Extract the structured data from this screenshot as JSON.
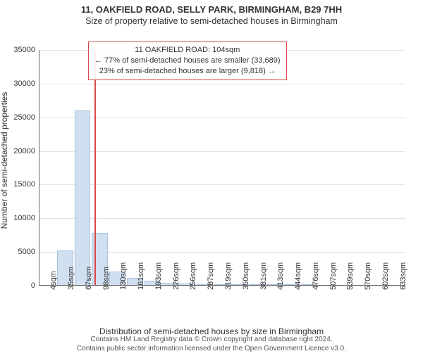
{
  "header": {
    "main_title": "11, OAKFIELD ROAD, SELLY PARK, BIRMINGHAM, B29 7HH",
    "sub_title": "Size of property relative to semi-detached houses in Birmingham"
  },
  "chart": {
    "type": "histogram",
    "ylabel": "Number of semi-detached properties",
    "xlabel": "Distribution of semi-detached houses by size in Birmingham",
    "ylim": [
      0,
      35000
    ],
    "ytick_step": 5000,
    "ytick_labels": [
      "0",
      "5000",
      "10000",
      "15000",
      "20000",
      "25000",
      "30000",
      "35000"
    ],
    "xtick_labels": [
      "4sqm",
      "35sqm",
      "67sqm",
      "98sqm",
      "130sqm",
      "161sqm",
      "193sqm",
      "226sqm",
      "256sqm",
      "287sqm",
      "319sqm",
      "350sqm",
      "381sqm",
      "413sqm",
      "444sqm",
      "476sqm",
      "507sqm",
      "539sqm",
      "570sqm",
      "602sqm",
      "633sqm"
    ],
    "values": [
      0,
      5200,
      26000,
      7800,
      2100,
      1100,
      700,
      400,
      300,
      200,
      120,
      90,
      70,
      55,
      45,
      35,
      30,
      25,
      20,
      15,
      10
    ],
    "bar_color": "#d1e0f0",
    "bar_border_color": "#a8c1e0",
    "background_color": "#ffffff",
    "grid_color": "#e2e2e2",
    "axis_color": "#666666",
    "marker": {
      "x_index": 3.2,
      "color": "#d94848",
      "line1": "11 OAKFIELD ROAD: 104sqm",
      "line2": "← 77% of semi-detached houses are smaller (33,689)",
      "line3": "23% of semi-detached houses are larger (9,818) →",
      "box_border_color": "#d94848"
    },
    "fontsize_tick": 11,
    "fontsize_label": 12,
    "fontsize_title": 13
  },
  "footer": {
    "line1": "Contains HM Land Registry data © Crown copyright and database right 2024.",
    "line2": "Contains public sector information licensed under the Open Government Licence v3.0."
  }
}
